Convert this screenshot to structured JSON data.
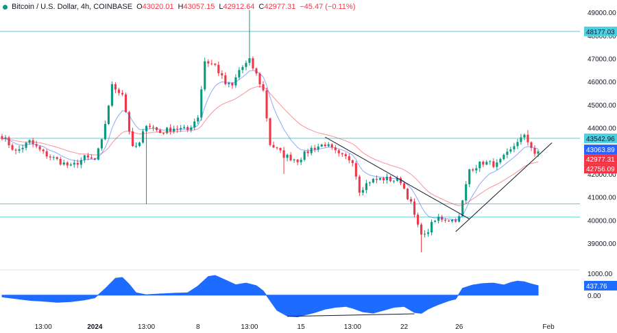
{
  "header": {
    "symbol": "Bitcoin / U.S. Dollar, 4h, COINBASE",
    "open_label": "O",
    "open": "43020.01",
    "high_label": "H",
    "high": "43057.15",
    "low_label": "L",
    "low": "42912.64",
    "close_label": "C",
    "close": "42977.31",
    "change": "−45.47 (−0.11%)"
  },
  "colors": {
    "up": "#089981",
    "down": "#f23645",
    "ema_fast": "#2962ff",
    "ema_slow": "#f23645",
    "hline": "#4dd0e1",
    "osc": "#1e6bff",
    "axis_text": "#131722",
    "grid": "#ffffff"
  },
  "chart_data": [
    {
      "type": "candlestick",
      "timeframe": "4h",
      "price_range": [
        37900,
        49300
      ],
      "y_ticks": [
        {
          "value": 39000,
          "label": "39000.00"
        },
        {
          "value": 40000,
          "label": "40000.00"
        },
        {
          "value": 41000,
          "label": "41000.00"
        },
        {
          "value": 42000,
          "label": "42000.00"
        },
        {
          "value": 43000,
          "label": "43000.00"
        },
        {
          "value": 44000,
          "label": "44000.00"
        },
        {
          "value": 45000,
          "label": "45000.00"
        },
        {
          "value": 46000,
          "label": "46000.00"
        },
        {
          "value": 47000,
          "label": "47000.00"
        },
        {
          "value": 48000,
          "label": "48000.00"
        },
        {
          "value": 49000,
          "label": "49000.00"
        }
      ],
      "x_ticks": [
        {
          "index": 12,
          "label": "13:00"
        },
        {
          "index": 27,
          "label": "2024",
          "bold": true
        },
        {
          "index": 42,
          "label": "13:00"
        },
        {
          "index": 57,
          "label": "8"
        },
        {
          "index": 72,
          "label": "13:00"
        },
        {
          "index": 87,
          "label": "15"
        },
        {
          "index": 102,
          "label": "13:00"
        },
        {
          "index": 117,
          "label": "22"
        },
        {
          "index": 133,
          "label": "26"
        },
        {
          "index": 159,
          "label": "Feb"
        }
      ],
      "horizontal_lines": [
        {
          "price": 48177.03,
          "label": "48177.03",
          "badge": true
        },
        {
          "price": 43542.96,
          "label": "43542.96",
          "badge": true
        },
        {
          "price": 40700,
          "badge": false
        },
        {
          "price": 40130,
          "badge": false
        }
      ],
      "price_badges": [
        {
          "price": 43063.89,
          "label": "43063.89",
          "color": "#2962ff"
        },
        {
          "price": 42977.31,
          "label": "42977.31",
          "color": "#f23645"
        },
        {
          "price": 42756.09,
          "label": "42756.09",
          "color": "#f23645"
        }
      ],
      "trendlines": [
        {
          "from": {
            "index": 94,
            "price": 43600
          },
          "to": {
            "index": 136,
            "price": 40050
          }
        },
        {
          "from": {
            "index": 132,
            "price": 39500
          },
          "to": {
            "index": 160,
            "price": 43350
          }
        }
      ],
      "anchors": [
        [
          0,
          43650
        ],
        [
          4,
          42950
        ],
        [
          8,
          43400
        ],
        [
          12,
          42900
        ],
        [
          16,
          42600
        ],
        [
          20,
          42300
        ],
        [
          24,
          42700
        ],
        [
          27,
          42600
        ],
        [
          29,
          43400
        ],
        [
          32,
          45800
        ],
        [
          35,
          45500
        ],
        [
          38,
          43100
        ],
        [
          40,
          43300
        ],
        [
          42,
          44200
        ],
        [
          46,
          43800
        ],
        [
          50,
          44000
        ],
        [
          54,
          43900
        ],
        [
          57,
          44500
        ],
        [
          59,
          46900
        ],
        [
          62,
          46700
        ],
        [
          65,
          45900
        ],
        [
          67,
          45800
        ],
        [
          69,
          46500
        ],
        [
          72,
          46900
        ],
        [
          74,
          46300
        ],
        [
          76,
          45600
        ],
        [
          78,
          43300
        ],
        [
          82,
          42800
        ],
        [
          86,
          42600
        ],
        [
          90,
          43100
        ],
        [
          94,
          43300
        ],
        [
          98,
          42800
        ],
        [
          102,
          42600
        ],
        [
          104,
          41300
        ],
        [
          107,
          41700
        ],
        [
          111,
          41800
        ],
        [
          116,
          41700
        ],
        [
          119,
          40700
        ],
        [
          121,
          39700
        ],
        [
          123,
          39300
        ],
        [
          125,
          39800
        ],
        [
          127,
          40100
        ],
        [
          131,
          40000
        ],
        [
          133,
          40100
        ],
        [
          136,
          42200
        ],
        [
          140,
          42500
        ],
        [
          144,
          42400
        ],
        [
          148,
          43000
        ],
        [
          150,
          43450
        ],
        [
          152,
          43600
        ],
        [
          154,
          43200
        ],
        [
          155,
          42900
        ],
        [
          156,
          42977
        ]
      ],
      "ema_fast_period": 9,
      "ema_slow_period": 26
    },
    {
      "type": "area",
      "y_ticks": [
        {
          "value": 1000,
          "label": "1000.00"
        },
        {
          "value": 0,
          "label": "0.00"
        }
      ],
      "value_range": [
        -1050,
        1100
      ],
      "current": {
        "value": 437.76,
        "label": "437.76"
      },
      "divergence_line": {
        "from": {
          "index": 83,
          "value": -980
        },
        "to": {
          "index": 120,
          "value": -860
        }
      },
      "anchors": [
        [
          0,
          -80
        ],
        [
          4,
          -160
        ],
        [
          8,
          -240
        ],
        [
          12,
          -280
        ],
        [
          16,
          -330
        ],
        [
          20,
          -300
        ],
        [
          24,
          -220
        ],
        [
          27,
          -120
        ],
        [
          30,
          300
        ],
        [
          33,
          780
        ],
        [
          35,
          820
        ],
        [
          37,
          500
        ],
        [
          39,
          110
        ],
        [
          42,
          20
        ],
        [
          46,
          60
        ],
        [
          50,
          90
        ],
        [
          54,
          110
        ],
        [
          57,
          420
        ],
        [
          60,
          860
        ],
        [
          62,
          910
        ],
        [
          65,
          700
        ],
        [
          68,
          480
        ],
        [
          71,
          560
        ],
        [
          74,
          440
        ],
        [
          76,
          200
        ],
        [
          78,
          -250
        ],
        [
          80,
          -700
        ],
        [
          83,
          -960
        ],
        [
          86,
          -1000
        ],
        [
          88,
          -920
        ],
        [
          91,
          -800
        ],
        [
          94,
          -650
        ],
        [
          97,
          -560
        ],
        [
          100,
          -520
        ],
        [
          102,
          -600
        ],
        [
          105,
          -770
        ],
        [
          108,
          -830
        ],
        [
          111,
          -700
        ],
        [
          114,
          -560
        ],
        [
          117,
          -520
        ],
        [
          120,
          -800
        ],
        [
          122,
          -840
        ],
        [
          124,
          -640
        ],
        [
          127,
          -430
        ],
        [
          130,
          -260
        ],
        [
          132,
          -180
        ],
        [
          134,
          320
        ],
        [
          137,
          470
        ],
        [
          140,
          540
        ],
        [
          143,
          560
        ],
        [
          146,
          470
        ],
        [
          148,
          580
        ],
        [
          150,
          650
        ],
        [
          152,
          620
        ],
        [
          154,
          520
        ],
        [
          156,
          438
        ]
      ]
    }
  ]
}
